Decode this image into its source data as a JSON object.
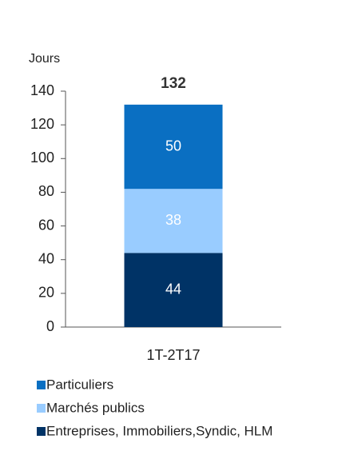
{
  "chart_data": {
    "type": "stacked_bar",
    "y_label": "Jours",
    "categories": [
      "1T-2T17"
    ],
    "series": [
      {
        "name": "Entreprises, Immobiliers,Syndic, HLM",
        "color": "#003366",
        "values": [
          44
        ]
      },
      {
        "name": "Marchés publics",
        "color": "#99ccff",
        "values": [
          38
        ]
      },
      {
        "name": "Particuliers",
        "color": "#0a6fc2",
        "values": [
          50
        ]
      }
    ],
    "totals": [
      132
    ],
    "ylim": [
      0,
      140
    ],
    "yticks": [
      0,
      20,
      40,
      60,
      80,
      100,
      120,
      140
    ],
    "legend": "bottom-left"
  }
}
